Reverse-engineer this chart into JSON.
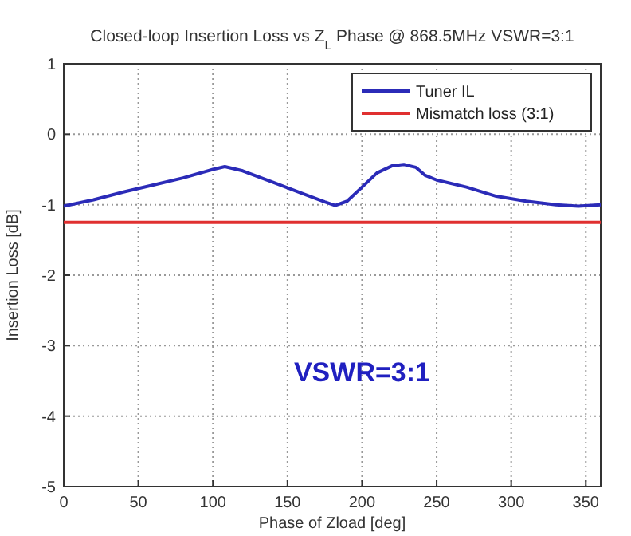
{
  "chart_data": {
    "type": "line",
    "title": "Closed-loop Insertion Loss vs Z$_{L}$ Phase @ 868.5MHz VSWR=3:1",
    "xlabel": "Phase of Zload [deg]",
    "ylabel": "Insertion Loss [dB]",
    "x": [
      0,
      20,
      40,
      60,
      80,
      100,
      108,
      120,
      140,
      160,
      175,
      182,
      190,
      200,
      210,
      220,
      228,
      236,
      242,
      250,
      270,
      290,
      310,
      330,
      345,
      360
    ],
    "series": [
      {
        "name": "Tuner IL",
        "color": "#2b2bb8",
        "values": [
          -1.02,
          -0.93,
          -0.82,
          -0.72,
          -0.62,
          -0.5,
          -0.46,
          -0.52,
          -0.68,
          -0.84,
          -0.96,
          -1.01,
          -0.95,
          -0.75,
          -0.55,
          -0.45,
          -0.43,
          -0.47,
          -0.58,
          -0.65,
          -0.75,
          -0.88,
          -0.95,
          -1.0,
          -1.02,
          -1.0
        ]
      },
      {
        "name": "Mismatch loss (3:1)",
        "color": "#e03030",
        "values": [
          -1.25,
          -1.25,
          -1.25,
          -1.25,
          -1.25,
          -1.25,
          -1.25,
          -1.25,
          -1.25,
          -1.25,
          -1.25,
          -1.25,
          -1.25,
          -1.25,
          -1.25,
          -1.25,
          -1.25,
          -1.25,
          -1.25,
          -1.25,
          -1.25,
          -1.25,
          -1.25,
          -1.25,
          -1.25,
          -1.25
        ]
      }
    ],
    "xlim": [
      0,
      360
    ],
    "xticks": [
      0,
      50,
      100,
      150,
      200,
      250,
      300,
      350
    ],
    "ylim": [
      -5,
      1
    ],
    "yticks": [
      -5,
      -4,
      -3,
      -2,
      -1,
      0,
      1
    ],
    "grid": true,
    "legend": "top right",
    "line_style": "solid",
    "annotations": [
      "VSWR=3:1"
    ]
  }
}
